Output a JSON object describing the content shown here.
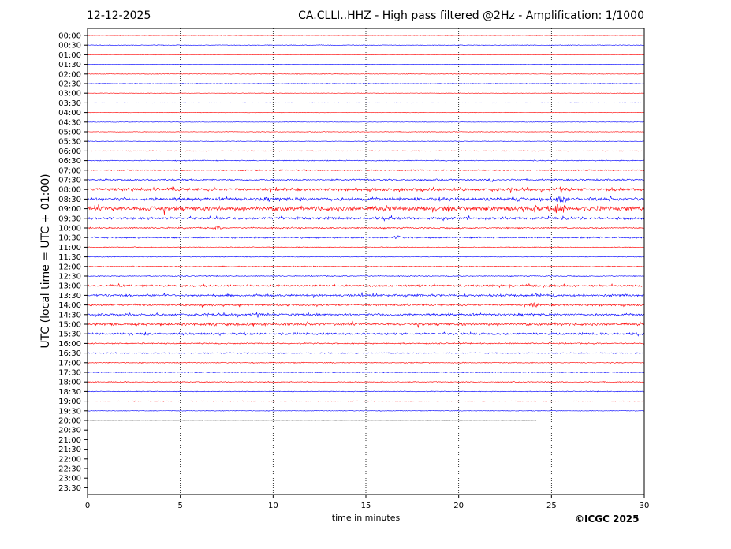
{
  "header": {
    "date": "12-12-2025",
    "title": "CA.CLLI..HHZ - High pass filtered @2Hz - Amplification: 1/1000"
  },
  "copyright": "©ICGC 2025",
  "chart_data": {
    "type": "line",
    "title": "CA.CLLI..HHZ - High pass filtered @2Hz - Amplification: 1/1000",
    "xlabel": "time in minutes",
    "ylabel": "UTC (local time = UTC + 01:00)",
    "xlim": [
      0,
      30
    ],
    "x_ticks": [
      0,
      5,
      10,
      15,
      20,
      25,
      30
    ],
    "y_tick_labels": [
      "00:00",
      "00:30",
      "01:00",
      "01:30",
      "02:00",
      "02:30",
      "03:00",
      "03:30",
      "04:00",
      "04:30",
      "05:00",
      "05:30",
      "06:00",
      "06:30",
      "07:00",
      "07:30",
      "08:00",
      "08:30",
      "09:00",
      "09:30",
      "10:00",
      "10:30",
      "11:00",
      "11:30",
      "12:00",
      "12:30",
      "13:00",
      "13:30",
      "14:00",
      "14:30",
      "15:00",
      "15:30",
      "16:00",
      "16:30",
      "17:00",
      "17:30",
      "18:00",
      "18:30",
      "19:00",
      "19:30",
      "20:00",
      "20:30",
      "21:00",
      "21:30",
      "22:00",
      "22:30",
      "23:00",
      "23:30"
    ],
    "grid": "vertical dotted at every 5 minutes",
    "trace_colors": [
      "#ff0000",
      "#0000ff",
      "#808080"
    ],
    "color_pattern": "traces alternate red / blue; the last, partial trace (20:00) is grey",
    "last_trace_end_minute": 24.2,
    "amplitude_levels": [
      0.3,
      0.4,
      0.3,
      0.3,
      0.4,
      0.4,
      0.3,
      0.3,
      0.3,
      0.3,
      0.4,
      0.4,
      0.5,
      0.6,
      0.8,
      1.0,
      1.8,
      2.0,
      2.8,
      1.6,
      0.9,
      1.0,
      0.6,
      0.5,
      0.6,
      0.6,
      1.2,
      1.4,
      1.2,
      1.4,
      1.6,
      1.4,
      0.8,
      0.7,
      0.6,
      0.6,
      0.6,
      0.5,
      0.4,
      0.4,
      0.3
    ],
    "events": [
      {
        "row": 15,
        "minute": 21.8,
        "amplitude": 3
      },
      {
        "row": 16,
        "minute": 4.6,
        "amplitude": 4
      },
      {
        "row": 17,
        "minute": 25.6,
        "amplitude": 9
      },
      {
        "row": 18,
        "minute": 3.4,
        "amplitude": 4
      },
      {
        "row": 18,
        "minute": 13.5,
        "amplitude": 4
      },
      {
        "row": 18,
        "minute": 24.1,
        "amplitude": 5
      },
      {
        "row": 18,
        "minute": 25.3,
        "amplitude": 7
      },
      {
        "row": 18,
        "minute": 25.6,
        "amplitude": 6
      },
      {
        "row": 20,
        "minute": 7.0,
        "amplitude": 3
      },
      {
        "row": 21,
        "minute": 16.7,
        "amplitude": 3
      },
      {
        "row": 28,
        "minute": 24.1,
        "amplitude": 4
      },
      {
        "row": 29,
        "minute": 19.5,
        "amplitude": 3
      },
      {
        "row": 30,
        "minute": 20.3,
        "amplitude": 3
      }
    ]
  }
}
